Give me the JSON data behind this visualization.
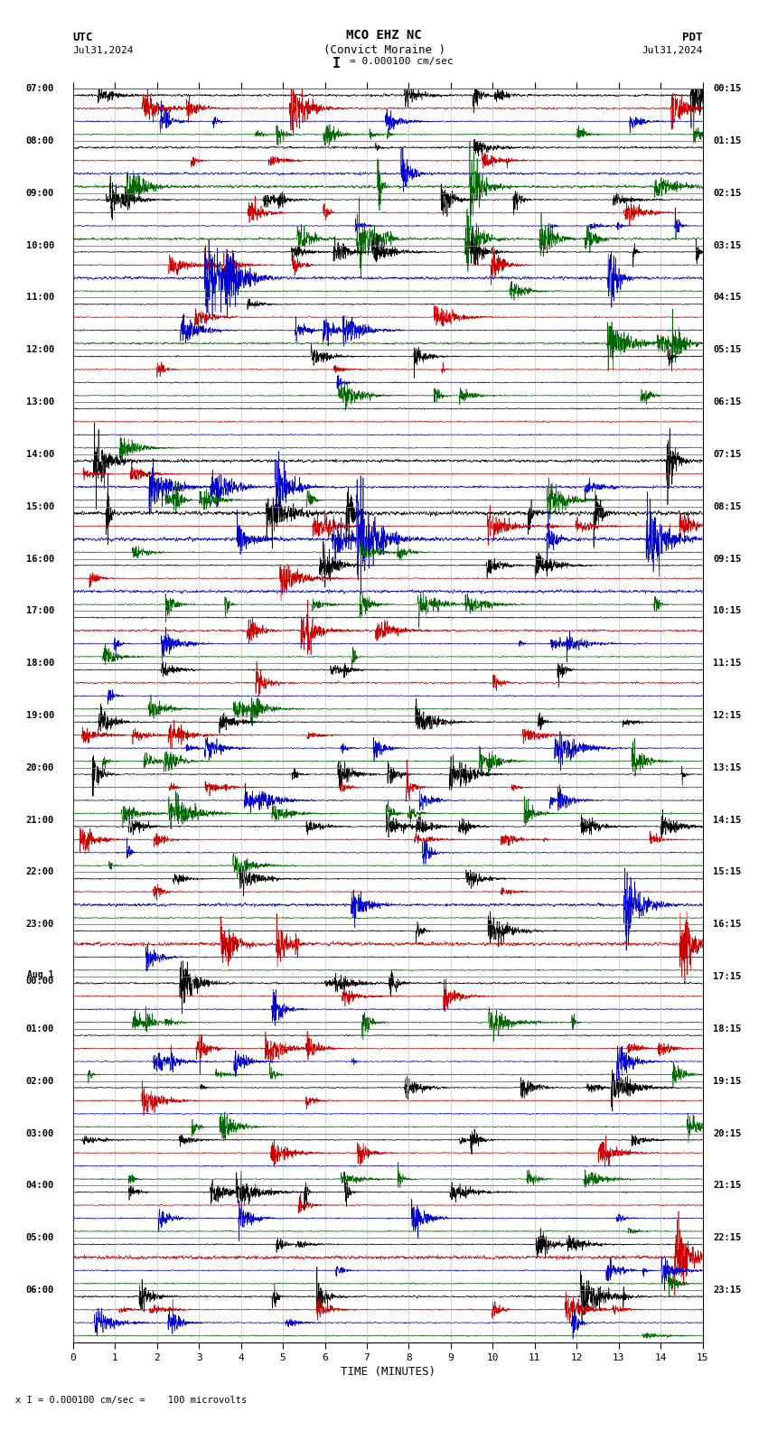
{
  "title_line1": "MCO EHZ NC",
  "title_line2": "(Convict Moraine )",
  "scale_text": "I = 0.000100 cm/sec",
  "utc_label": "UTC",
  "pdt_label": "PDT",
  "date_left": "Jul31,2024",
  "date_right": "Jul31,2024",
  "xlabel": "TIME (MINUTES)",
  "bottom_text": "x I = 0.000100 cm/sec =    100 microvolts",
  "trace_colors": [
    "#000000",
    "#cc0000",
    "#0000cc",
    "#006600"
  ],
  "bg_color": "#ffffff",
  "plot_bg": "#ffffff",
  "grid_color": "#888888",
  "n_hour_groups": 24,
  "traces_per_group": 4,
  "utc_labels": [
    "07:00",
    "08:00",
    "09:00",
    "10:00",
    "11:00",
    "12:00",
    "13:00",
    "14:00",
    "15:00",
    "16:00",
    "17:00",
    "18:00",
    "19:00",
    "20:00",
    "21:00",
    "22:00",
    "23:00",
    "Aug 1\n00:00",
    "01:00",
    "02:00",
    "03:00",
    "04:00",
    "05:00",
    "06:00"
  ],
  "pdt_labels": [
    "00:15",
    "01:15",
    "02:15",
    "03:15",
    "04:15",
    "05:15",
    "06:15",
    "07:15",
    "08:15",
    "09:15",
    "10:15",
    "11:15",
    "12:15",
    "13:15",
    "14:15",
    "15:15",
    "16:15",
    "17:15",
    "18:15",
    "19:15",
    "20:15",
    "21:15",
    "22:15",
    "23:15"
  ],
  "xmin": 0,
  "xmax": 15,
  "xticks": [
    0,
    1,
    2,
    3,
    4,
    5,
    6,
    7,
    8,
    9,
    10,
    11,
    12,
    13,
    14,
    15
  ],
  "noise_seed": 42
}
